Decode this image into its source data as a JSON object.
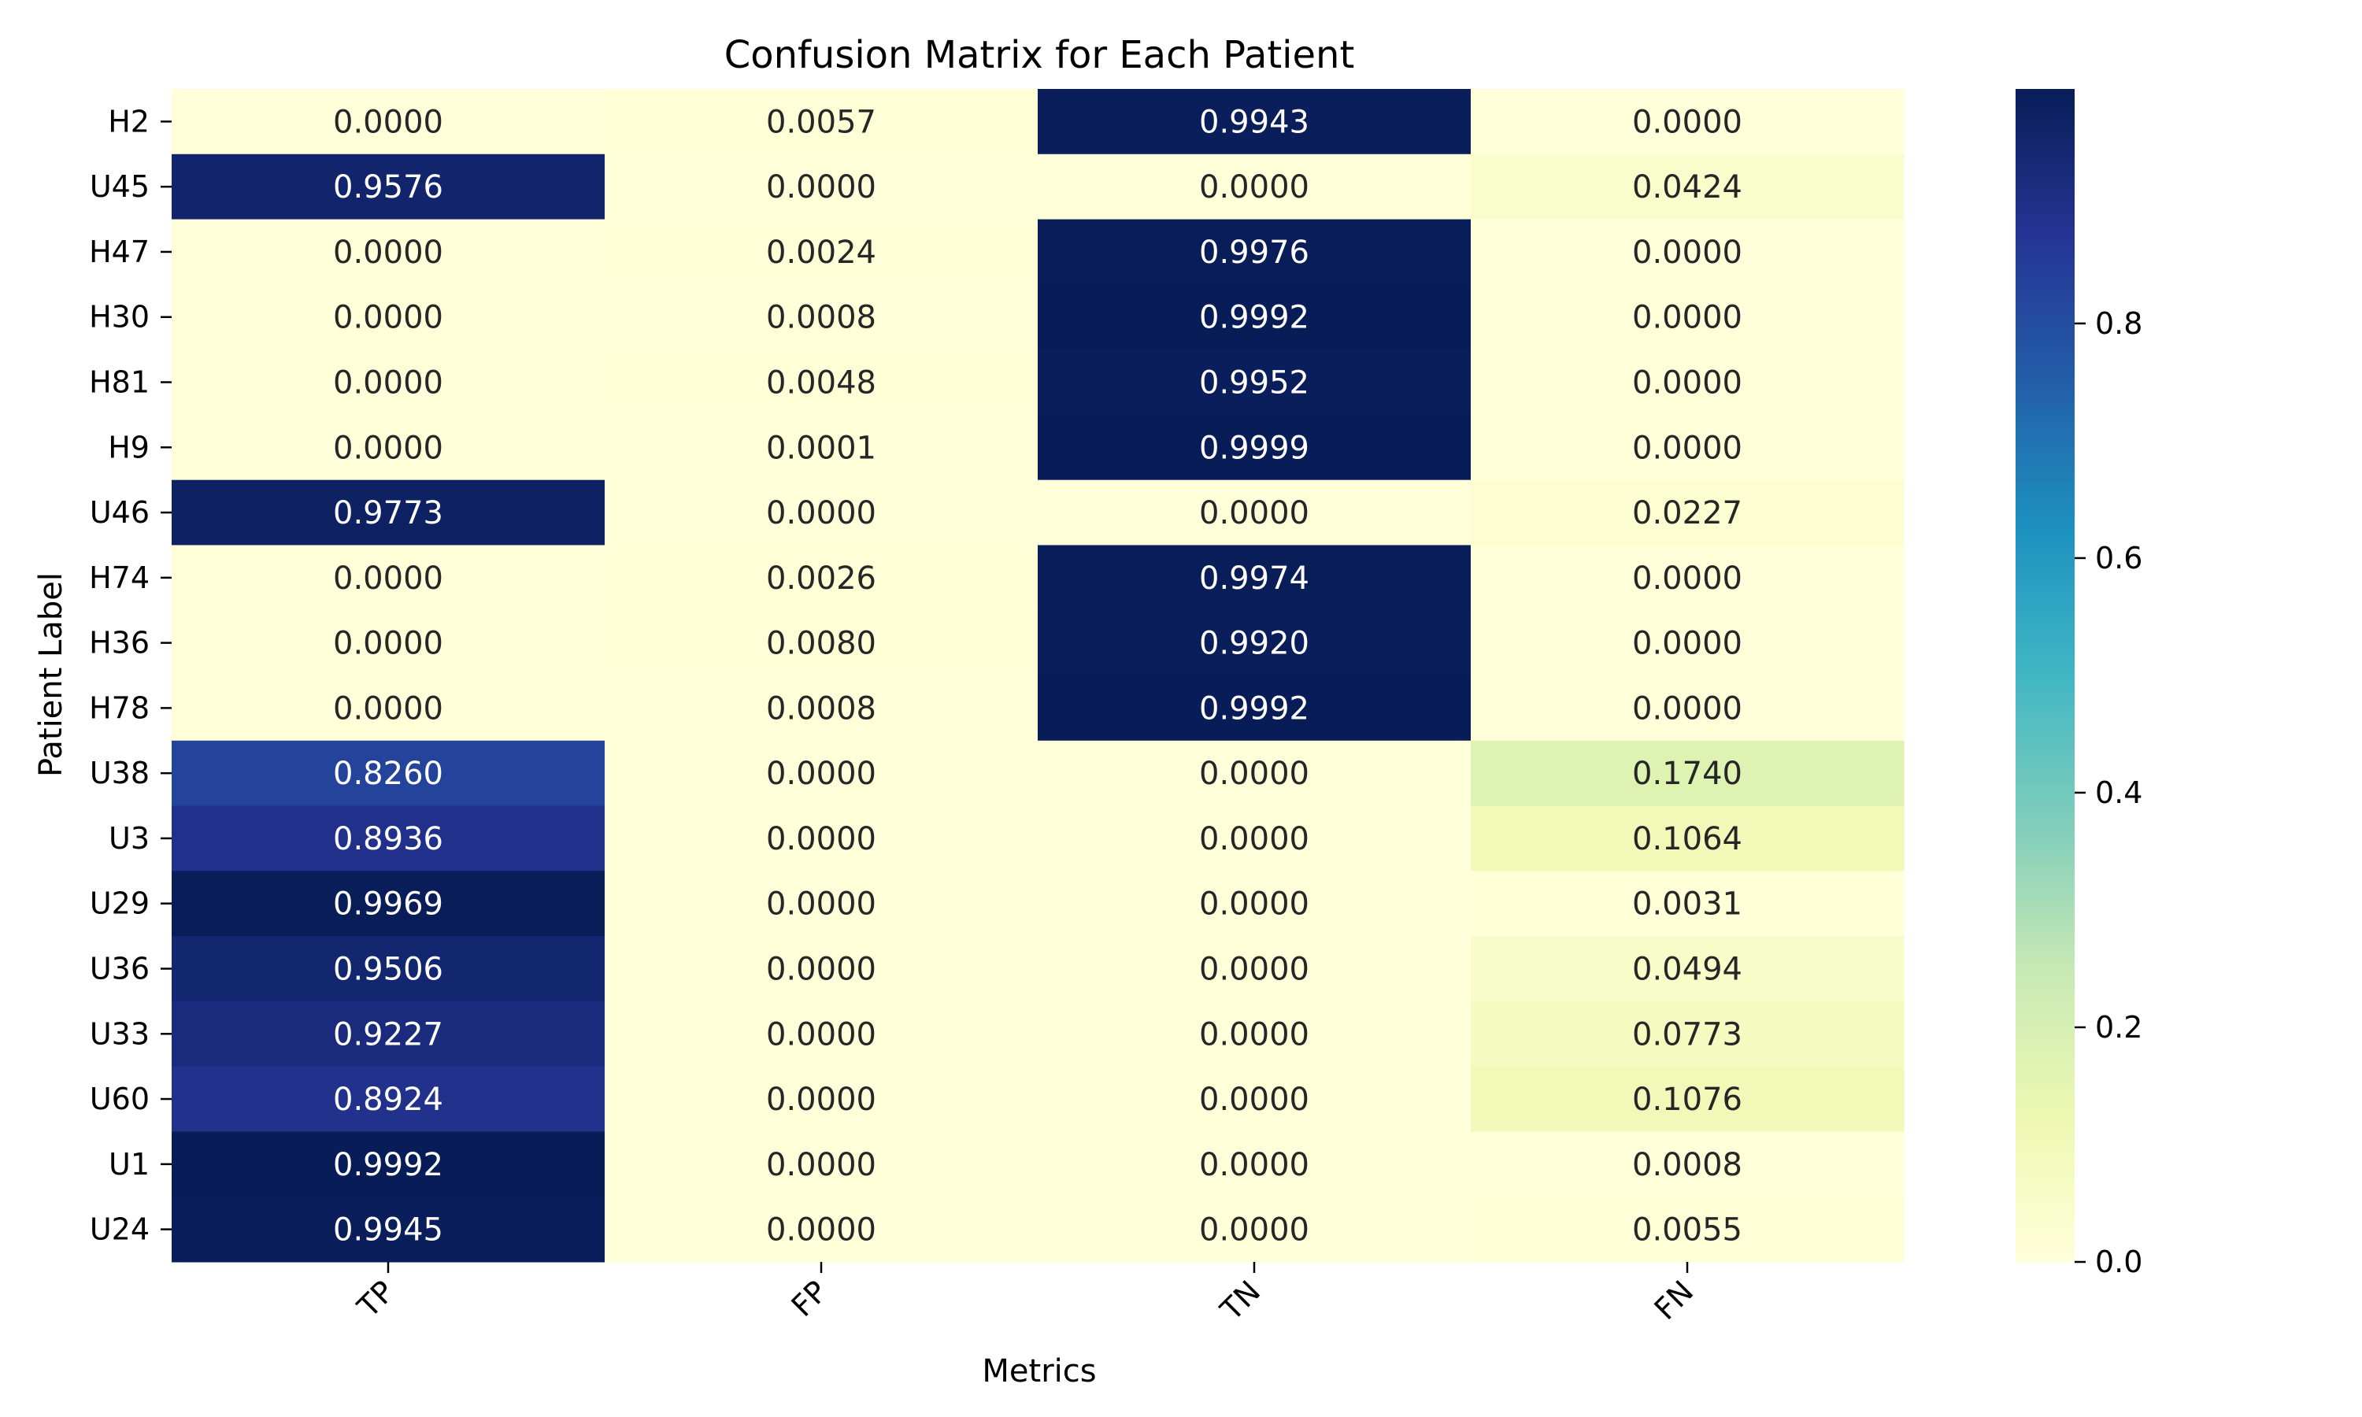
{
  "chart_data": {
    "type": "heatmap",
    "title": "Confusion Matrix for Each Patient",
    "xlabel": "Metrics",
    "ylabel": "Patient Label",
    "columns": [
      "TP",
      "FP",
      "TN",
      "FN"
    ],
    "rows": [
      "H2",
      "U45",
      "H47",
      "H30",
      "H81",
      "H9",
      "U46",
      "H74",
      "H36",
      "H78",
      "U38",
      "U3",
      "U29",
      "U36",
      "U33",
      "U60",
      "U1",
      "U24"
    ],
    "values": [
      [
        0.0,
        0.0057,
        0.9943,
        0.0
      ],
      [
        0.9576,
        0.0,
        0.0,
        0.0424
      ],
      [
        0.0,
        0.0024,
        0.9976,
        0.0
      ],
      [
        0.0,
        0.0008,
        0.9992,
        0.0
      ],
      [
        0.0,
        0.0048,
        0.9952,
        0.0
      ],
      [
        0.0,
        0.0001,
        0.9999,
        0.0
      ],
      [
        0.9773,
        0.0,
        0.0,
        0.0227
      ],
      [
        0.0,
        0.0026,
        0.9974,
        0.0
      ],
      [
        0.0,
        0.008,
        0.992,
        0.0
      ],
      [
        0.0,
        0.0008,
        0.9992,
        0.0
      ],
      [
        0.826,
        0.0,
        0.0,
        0.174
      ],
      [
        0.8936,
        0.0,
        0.0,
        0.1064
      ],
      [
        0.9969,
        0.0,
        0.0,
        0.0031
      ],
      [
        0.9506,
        0.0,
        0.0,
        0.0494
      ],
      [
        0.9227,
        0.0,
        0.0,
        0.0773
      ],
      [
        0.8924,
        0.0,
        0.0,
        0.1076
      ],
      [
        0.9992,
        0.0,
        0.0,
        0.0008
      ],
      [
        0.9945,
        0.0,
        0.0,
        0.0055
      ]
    ],
    "value_format": "0.0000",
    "colormap": "YlGnBu",
    "colorbar": {
      "range": [
        0.0,
        0.9999
      ],
      "ticks": [
        0.0,
        0.2,
        0.4,
        0.6,
        0.8
      ],
      "tick_labels": [
        "0.0",
        "0.2",
        "0.4",
        "0.6",
        "0.8"
      ]
    },
    "legend": "colorbar-right",
    "grid": false
  }
}
